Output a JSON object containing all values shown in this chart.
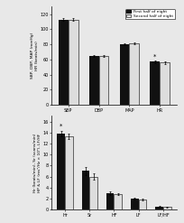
{
  "top_chart": {
    "categories": [
      "SBP",
      "DBP",
      "MAP",
      "HR"
    ],
    "first_half": [
      113,
      65,
      80,
      57
    ],
    "second_half": [
      113,
      65,
      81,
      56
    ],
    "first_half_err": [
      1.5,
      1.2,
      1.2,
      1.5
    ],
    "second_half_err": [
      1.5,
      1.2,
      1.2,
      1.5
    ],
    "ylabel": "SBP, DBP, MAP (mmHg)\nHR (beats/min)",
    "ylim": [
      0,
      130
    ],
    "yticks": [
      0,
      20,
      40,
      60,
      80,
      100,
      120
    ],
    "star_positions": [
      3
    ],
    "bar_width": 0.32
  },
  "bottom_chart": {
    "categories": [
      "Hr",
      "Sr",
      "HF",
      "LF",
      "LF/HF"
    ],
    "first_half": [
      13.8,
      7.0,
      3.0,
      2.0,
      0.6
    ],
    "second_half": [
      13.3,
      6.0,
      2.8,
      1.8,
      0.5
    ],
    "first_half_err": [
      0.5,
      0.8,
      0.3,
      0.2,
      0.1
    ],
    "second_half_err": [
      0.5,
      0.6,
      0.2,
      0.2,
      0.1
    ],
    "ylabel": "Hr (beats/min), Sr (scans/min)\nHP & LF (ms²/Hz × 10²), LF/HF",
    "ylim": [
      0,
      17
    ],
    "yticks": [
      0,
      2,
      4,
      6,
      8,
      10,
      12,
      14,
      16
    ],
    "star_positions": [
      0
    ],
    "bar_width": 0.32
  },
  "legend": {
    "first_label": "First half of night",
    "second_label": "Second half of night",
    "first_color": "#111111",
    "second_color": "#dddddd"
  },
  "background_color": "#e8e8e8",
  "label_fontsize": 3.2,
  "tick_fontsize": 3.5,
  "legend_fontsize": 3.2,
  "star_fontsize": 5
}
